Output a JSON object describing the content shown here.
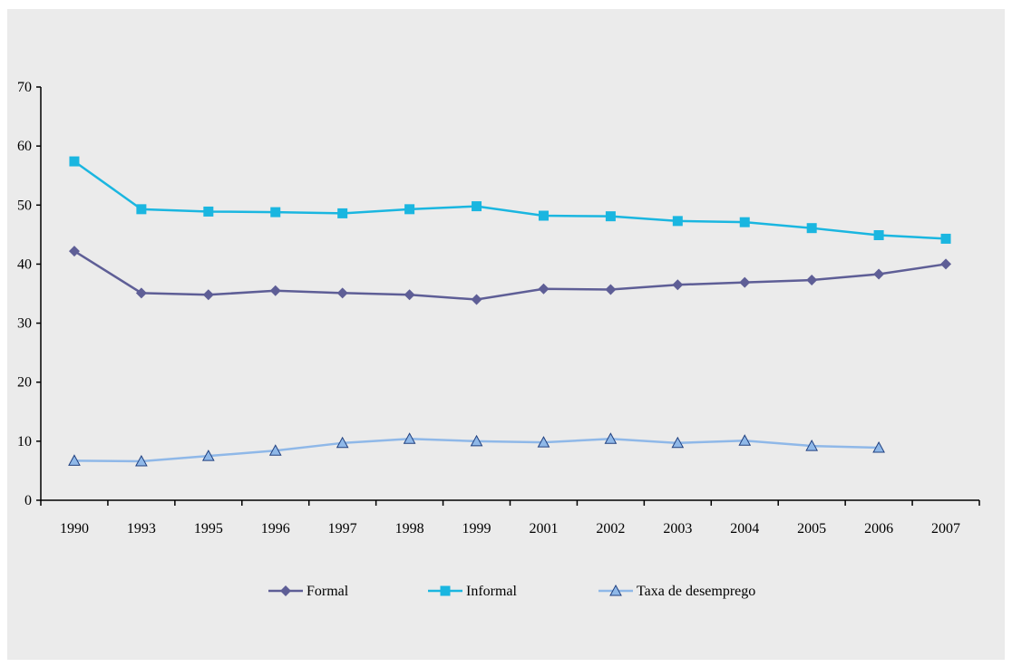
{
  "chart_data": {
    "type": "line",
    "categories": [
      "1990",
      "1993",
      "1995",
      "1996",
      "1997",
      "1998",
      "1999",
      "2001",
      "2002",
      "2003",
      "2004",
      "2005",
      "2006",
      "2007"
    ],
    "ylim": [
      0,
      70
    ],
    "yticks": [
      0,
      10,
      20,
      30,
      40,
      50,
      60,
      70
    ],
    "grid": false,
    "legend_position": "bottom",
    "series": [
      {
        "name": "Formal",
        "color": "#5e5e96",
        "marker": "diamond",
        "values": [
          42.2,
          35.1,
          34.8,
          35.5,
          35.1,
          34.8,
          34.0,
          35.8,
          35.7,
          36.5,
          36.9,
          37.3,
          38.3,
          40.0
        ]
      },
      {
        "name": "Informal",
        "color": "#1ab6e0",
        "marker": "square",
        "values": [
          57.4,
          49.3,
          48.9,
          48.8,
          48.6,
          49.3,
          49.8,
          48.2,
          48.1,
          47.3,
          47.1,
          46.1,
          44.9,
          44.3
        ]
      },
      {
        "name": "Taxa de desemprego",
        "color": "#8fb8e8",
        "marker": "triangle",
        "values": [
          6.7,
          6.6,
          7.5,
          8.4,
          9.7,
          10.4,
          10.0,
          9.8,
          10.4,
          9.7,
          10.1,
          9.2,
          8.9,
          null
        ]
      }
    ]
  }
}
